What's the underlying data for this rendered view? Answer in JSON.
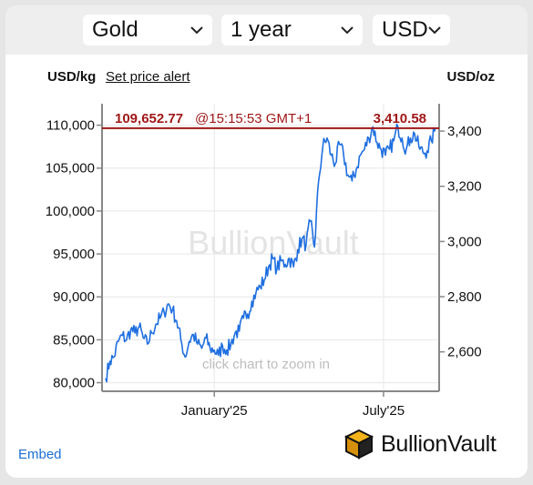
{
  "selectors": {
    "metal": "Gold",
    "period": "1 year",
    "currency": "USD"
  },
  "header": {
    "left_unit": "USD/kg",
    "alert_link": "Set price alert",
    "right_unit": "USD/oz"
  },
  "watermark": "BullionVault",
  "zoom_hint": "click chart to zoom in",
  "current_price": {
    "kg": "109,652.77",
    "time": "@15:15:53 GMT+1",
    "oz": "3,410.58"
  },
  "footer": {
    "embed_label": "Embed",
    "brand_name": "BullionVault"
  },
  "colors": {
    "line": "#1f6fe0",
    "price_marker": "#a01818",
    "axis": "#888888",
    "grid": "#e6e6e6"
  },
  "chart_data": {
    "type": "line",
    "x_ticks": [
      "January'25",
      "July'25"
    ],
    "y_left_ticks": [
      "80,000",
      "85,000",
      "90,000",
      "95,000",
      "100,000",
      "105,000",
      "110,000"
    ],
    "y_right_ticks": [
      "2,600",
      "2,800",
      "3,000",
      "3,200",
      "3,400"
    ],
    "y_left_label": "USD/kg",
    "y_right_label": "USD/oz",
    "ylim_left": [
      79000,
      112500
    ],
    "period": [
      "2024-08",
      "2025-08"
    ],
    "series": [
      {
        "values": [
          80500,
          82500,
          83000,
          84800,
          85500,
          85000,
          86200,
          85800,
          86500,
          85200,
          84500,
          85800,
          86800,
          87500,
          88200,
          89200,
          88500,
          87200,
          85000,
          83000,
          84800,
          85600,
          84500,
          84000,
          85200,
          84000,
          83800,
          83200,
          84300,
          83800,
          84500,
          85800,
          86000,
          87500,
          88000,
          89500,
          90500,
          91200,
          92000,
          93500,
          94500,
          93200,
          94200,
          93800,
          94500,
          93500,
          95500,
          96800,
          96000,
          98800,
          95800,
          103500,
          107500,
          108500,
          106500,
          105500,
          107800,
          106500,
          104200,
          103500,
          104800,
          106500,
          107200,
          108500,
          109800,
          108000,
          107200,
          106500,
          107200,
          108200,
          109800,
          108500,
          107200,
          108500,
          109000,
          107500,
          106800,
          107000,
          108200,
          109652
        ]
      }
    ]
  }
}
